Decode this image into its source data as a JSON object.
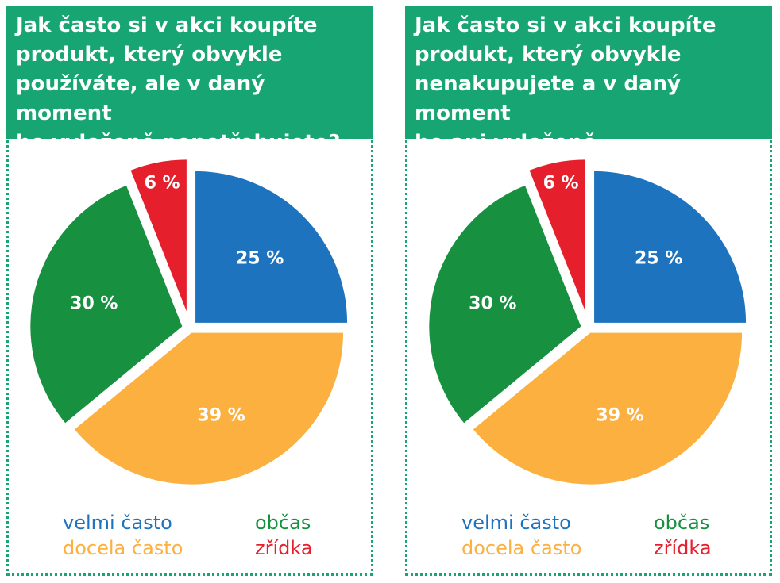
{
  "colors": {
    "header_bg": "#17a673",
    "velmi": "#1e73be",
    "docela": "#fbb040",
    "obcas": "#17903f",
    "zridka": "#e61f2d"
  },
  "panels": [
    {
      "title": "Jak často si v akci koupíte\nprodukt, který obvykle\npoužíváte, ale v daný moment\nho vyloženě nepotřebujete?",
      "legend": [
        {
          "label": "velmi často",
          "color": "#1e73be"
        },
        {
          "label": "občas",
          "color": "#17903f"
        },
        {
          "label": "docela často",
          "color": "#fbb040"
        },
        {
          "label": "zřídka",
          "color": "#e61f2d"
        }
      ]
    },
    {
      "title": "Jak často si v akci koupíte\nprodukt, který obvykle\nnenakupujete a v daný moment\nho ani vyloženě nepotřebujete?",
      "legend": [
        {
          "label": "velmi často",
          "color": "#1e73be"
        },
        {
          "label": "občas",
          "color": "#17903f"
        },
        {
          "label": "docela často",
          "color": "#fbb040"
        },
        {
          "label": "zřídka",
          "color": "#e61f2d"
        }
      ]
    }
  ],
  "chart_data": [
    {
      "type": "pie",
      "title": "Jak často si v akci koupíte produkt, který obvykle používáte, ale v daný moment ho vyloženě nepotřebujete?",
      "categories": [
        "velmi často",
        "docela často",
        "občas",
        "zřídka"
      ],
      "values": [
        25,
        39,
        30,
        6
      ],
      "labels": [
        "25 %",
        "39 %",
        "30 %",
        "6 %"
      ],
      "colors": [
        "#1e73be",
        "#fbb040",
        "#17903f",
        "#e61f2d"
      ],
      "legend_position": "bottom"
    },
    {
      "type": "pie",
      "title": "Jak často si v akci koupíte produkt, který obvykle nenakupujete a v daný moment ho ani vyloženě nepotřebujete?",
      "categories": [
        "velmi často",
        "docela často",
        "občas",
        "zřídka"
      ],
      "values": [
        25,
        39,
        30,
        6
      ],
      "labels": [
        "25 %",
        "39 %",
        "30 %",
        "6 %"
      ],
      "colors": [
        "#1e73be",
        "#fbb040",
        "#17903f",
        "#e61f2d"
      ],
      "legend_position": "bottom"
    }
  ]
}
